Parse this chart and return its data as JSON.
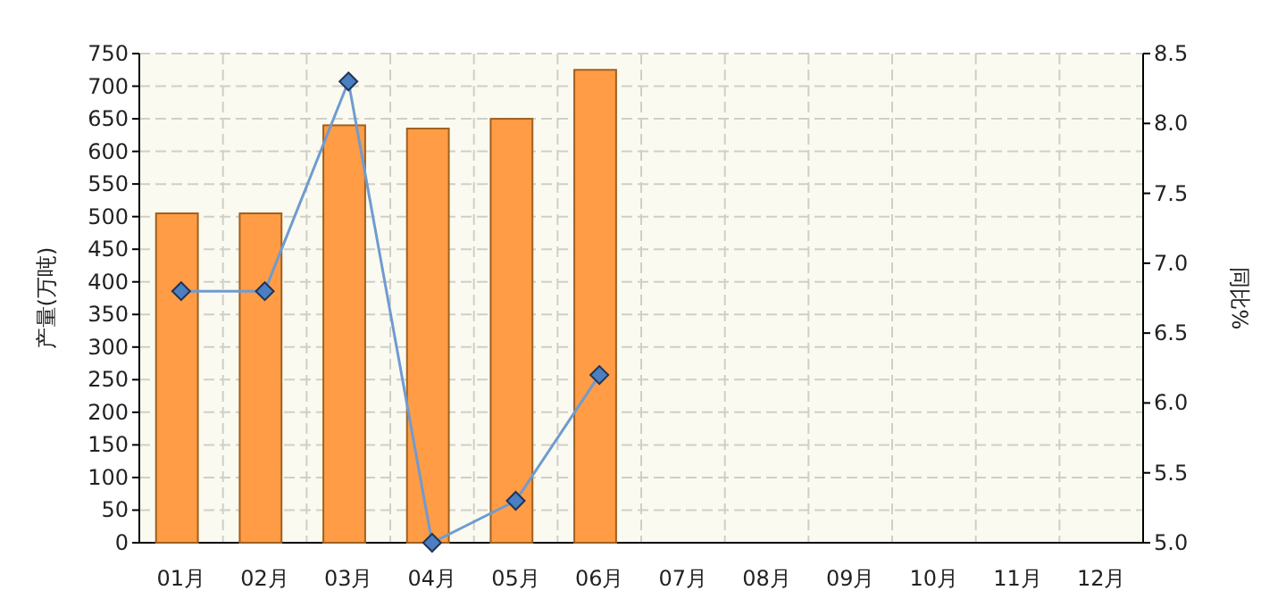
{
  "chart_data": {
    "type": "bar",
    "ylabel": "产量(万吨)",
    "y2label": "同比%",
    "categories": [
      "01月",
      "02月",
      "03月",
      "04月",
      "05月",
      "06月",
      "07月",
      "08月",
      "09月",
      "10月",
      "11月",
      "12月"
    ],
    "series": [
      {
        "color": "#ff9c45",
        "values": [
          505,
          505,
          640,
          635,
          650,
          725,
          null,
          null,
          null,
          null,
          null,
          null
        ]
      },
      {
        "type": "line",
        "axis": "y2",
        "color": "#6f9bd0",
        "values": [
          6.8,
          6.8,
          8.3,
          5.0,
          5.3,
          6.2,
          null,
          null,
          null,
          null,
          null,
          null
        ]
      }
    ],
    "marker": "diamond",
    "grid": true,
    "ylim": [
      0,
      750
    ],
    "yticks": [
      0,
      50,
      100,
      150,
      200,
      250,
      300,
      350,
      400,
      450,
      500,
      550,
      600,
      650,
      700,
      750
    ],
    "y2lim": [
      5,
      8.5
    ],
    "y2ticks": [
      {
        "value": 5,
        "label": "5.0"
      },
      {
        "value": 5.5,
        "label": "5.5"
      },
      {
        "value": 6,
        "label": "6.0"
      },
      {
        "value": 6.5,
        "label": "6.5"
      },
      {
        "value": 7,
        "label": "7.0"
      },
      {
        "value": 7.5,
        "label": "7.5"
      },
      {
        "value": 8,
        "label": "8.0"
      },
      {
        "value": 8.5,
        "label": "8.5"
      }
    ]
  }
}
